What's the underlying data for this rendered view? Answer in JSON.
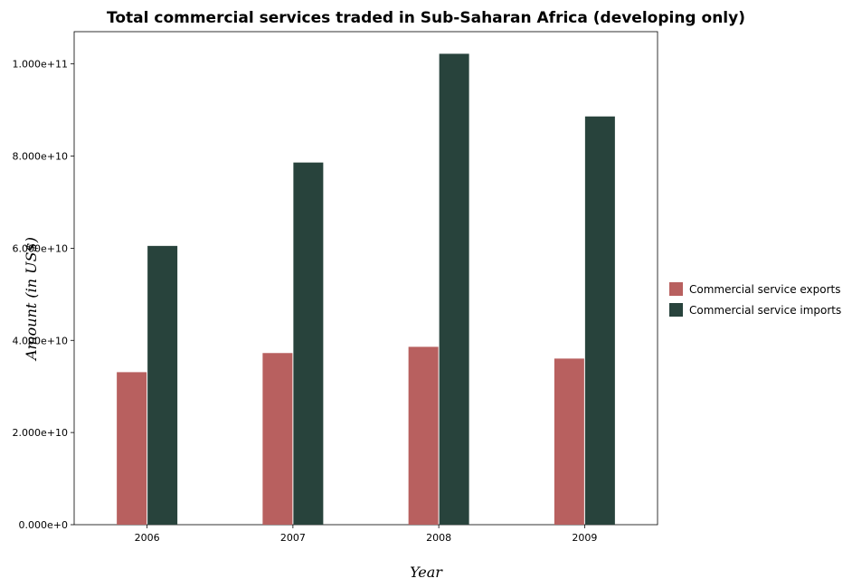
{
  "chart_data": {
    "type": "bar",
    "title": "Total commercial services traded in Sub-Saharan Africa (developing only)",
    "xlabel": "Year",
    "ylabel": "Amount (in US$)",
    "categories": [
      "2006",
      "2007",
      "2008",
      "2009"
    ],
    "series": [
      {
        "name": "Commercial service exports",
        "color": "#b8605f",
        "values": [
          33100000000,
          37250000000,
          38600000000,
          36050000000
        ]
      },
      {
        "name": "Commercial service imports",
        "color": "#28433c",
        "values": [
          60500000000,
          78600000000,
          102200000000,
          88600000000
        ]
      }
    ],
    "ylim": [
      0,
      107000000000
    ],
    "yticks": [
      0,
      20000000000,
      40000000000,
      60000000000,
      80000000000,
      100000000000
    ],
    "ytick_labels": [
      "0.000e+0",
      "2.000e+10",
      "4.000e+10",
      "6.000e+10",
      "8.000e+10",
      "1.000e+11"
    ],
    "grid": false,
    "legend_position": "right"
  }
}
